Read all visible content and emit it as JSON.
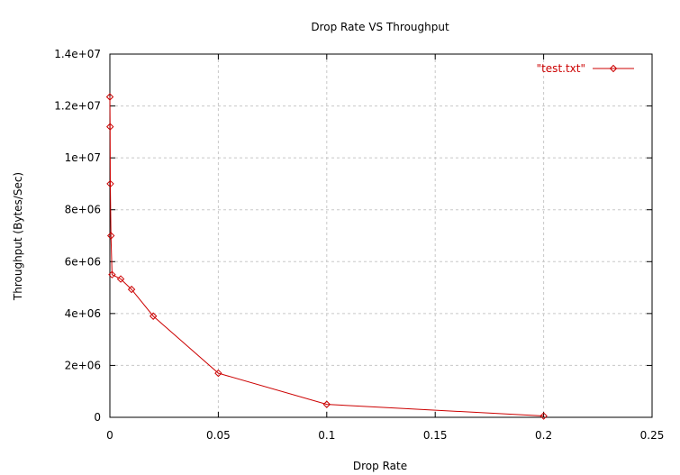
{
  "chart_data": {
    "type": "line",
    "title": "Drop Rate VS Throughput",
    "xlabel": "Drop Rate",
    "ylabel": "Throughput (Bytes/Sec)",
    "xlim": [
      0,
      0.25
    ],
    "ylim": [
      0,
      14000000
    ],
    "x_ticks": [
      0,
      0.05,
      0.1,
      0.15,
      0.2,
      0.25
    ],
    "x_tick_labels": [
      "0",
      "0.05",
      "0.1",
      "0.15",
      "0.2",
      "0.25"
    ],
    "y_ticks": [
      0,
      2000000,
      4000000,
      6000000,
      8000000,
      10000000,
      12000000,
      14000000
    ],
    "y_tick_labels": [
      "0",
      "2e+06",
      "4e+06",
      "6e+06",
      "8e+06",
      "1e+07",
      "1.2e+07",
      "1.4e+07"
    ],
    "grid": true,
    "legend_position": "top-right",
    "series": [
      {
        "name": "\"test.txt\"",
        "color": "#cc0000",
        "marker": "diamond",
        "x": [
          0,
          0.0001,
          0.0002,
          0.0005,
          0.001,
          0.005,
          0.01,
          0.02,
          0.05,
          0.1,
          0.2
        ],
        "y": [
          12350000,
          11200000,
          9000000,
          7000000,
          5500000,
          5330000,
          4930000,
          3900000,
          1700000,
          500000,
          50000
        ]
      }
    ]
  }
}
